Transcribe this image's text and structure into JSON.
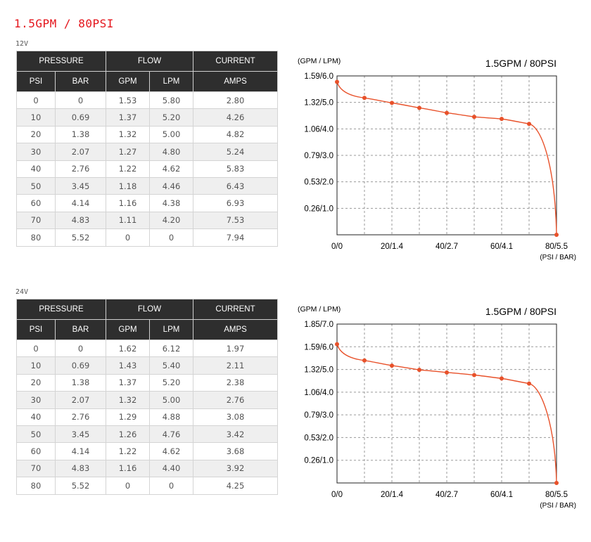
{
  "page": {
    "title": "1.5GPM / 80PSI"
  },
  "colors": {
    "title": "#e4141b",
    "header_bg": "#2e2e2e",
    "curve": "#e8512a",
    "grid": "#9a9a9a"
  },
  "sections": [
    {
      "voltage": "12V",
      "table": {
        "group_headers": [
          "PRESSURE",
          "FLOW",
          "CURRENT"
        ],
        "sub_headers": [
          "PSI",
          "BAR",
          "GPM",
          "LPM",
          "AMPS"
        ],
        "rows": [
          [
            "0",
            "0",
            "1.53",
            "5.80",
            "2.80"
          ],
          [
            "10",
            "0.69",
            "1.37",
            "5.20",
            "4.26"
          ],
          [
            "20",
            "1.38",
            "1.32",
            "5.00",
            "4.82"
          ],
          [
            "30",
            "2.07",
            "1.27",
            "4.80",
            "5.24"
          ],
          [
            "40",
            "2.76",
            "1.22",
            "4.62",
            "5.83"
          ],
          [
            "50",
            "3.45",
            "1.18",
            "4.46",
            "6.43"
          ],
          [
            "60",
            "4.14",
            "1.16",
            "4.38",
            "6.93"
          ],
          [
            "70",
            "4.83",
            "1.11",
            "4.20",
            "7.53"
          ],
          [
            "80",
            "5.52",
            "0",
            "0",
            "7.94"
          ]
        ]
      }
    },
    {
      "voltage": "24V",
      "table": {
        "group_headers": [
          "PRESSURE",
          "FLOW",
          "CURRENT"
        ],
        "sub_headers": [
          "PSI",
          "BAR",
          "GPM",
          "LPM",
          "AMPS"
        ],
        "rows": [
          [
            "0",
            "0",
            "1.62",
            "6.12",
            "1.97"
          ],
          [
            "10",
            "0.69",
            "1.43",
            "5.40",
            "2.11"
          ],
          [
            "20",
            "1.38",
            "1.37",
            "5.20",
            "2.38"
          ],
          [
            "30",
            "2.07",
            "1.32",
            "5.00",
            "2.76"
          ],
          [
            "40",
            "2.76",
            "1.29",
            "4.88",
            "3.08"
          ],
          [
            "50",
            "3.45",
            "1.26",
            "4.76",
            "3.42"
          ],
          [
            "60",
            "4.14",
            "1.22",
            "4.62",
            "3.68"
          ],
          [
            "70",
            "4.83",
            "1.16",
            "4.40",
            "3.92"
          ],
          [
            "80",
            "5.52",
            "0",
            "0",
            "4.25"
          ]
        ]
      }
    }
  ],
  "chart_data": [
    {
      "type": "line",
      "title": "1.5GPM / 80PSI",
      "ylabel": "(GPM / LPM)",
      "xlabel": "(PSI / BAR)",
      "xlim": [
        0,
        80
      ],
      "ylim": [
        0,
        1.59
      ],
      "x_tick_values": [
        0,
        20,
        40,
        60,
        80
      ],
      "x_tick_labels": [
        "0/0",
        "20/1.4",
        "40/2.7",
        "60/4.1",
        "80/5.5"
      ],
      "x_grid_values": [
        10,
        20,
        30,
        40,
        50,
        60,
        70
      ],
      "y_tick_values": [
        0.265,
        0.53,
        0.795,
        1.06,
        1.325,
        1.59
      ],
      "y_tick_labels": [
        "0.26/1.0",
        "0.53/2.0",
        "0.79/3.0",
        "1.06/4.0",
        "1.32/5.0",
        "1.59/6.0"
      ],
      "grid": true,
      "series": [
        {
          "x": [
            0,
            10,
            20,
            30,
            40,
            50,
            60,
            70,
            80
          ],
          "y": [
            1.53,
            1.37,
            1.32,
            1.27,
            1.22,
            1.18,
            1.16,
            1.11,
            0
          ]
        }
      ]
    },
    {
      "type": "line",
      "title": "1.5GPM / 80PSI",
      "ylabel": "(GPM / LPM)",
      "xlabel": "(PSI / BAR)",
      "xlim": [
        0,
        80
      ],
      "ylim": [
        0,
        1.855
      ],
      "x_tick_values": [
        0,
        20,
        40,
        60,
        80
      ],
      "x_tick_labels": [
        "0/0",
        "20/1.4",
        "40/2.7",
        "60/4.1",
        "80/5.5"
      ],
      "x_grid_values": [
        10,
        20,
        30,
        40,
        50,
        60,
        70
      ],
      "y_tick_values": [
        0.265,
        0.53,
        0.795,
        1.06,
        1.325,
        1.59,
        1.855
      ],
      "y_tick_labels": [
        "0.26/1.0",
        "0.53/2.0",
        "0.79/3.0",
        "1.06/4.0",
        "1.32/5.0",
        "1.59/6.0",
        "1.85/7.0"
      ],
      "grid": true,
      "series": [
        {
          "x": [
            0,
            10,
            20,
            30,
            40,
            50,
            60,
            70,
            80
          ],
          "y": [
            1.62,
            1.43,
            1.37,
            1.32,
            1.29,
            1.26,
            1.22,
            1.16,
            0
          ]
        }
      ]
    }
  ]
}
